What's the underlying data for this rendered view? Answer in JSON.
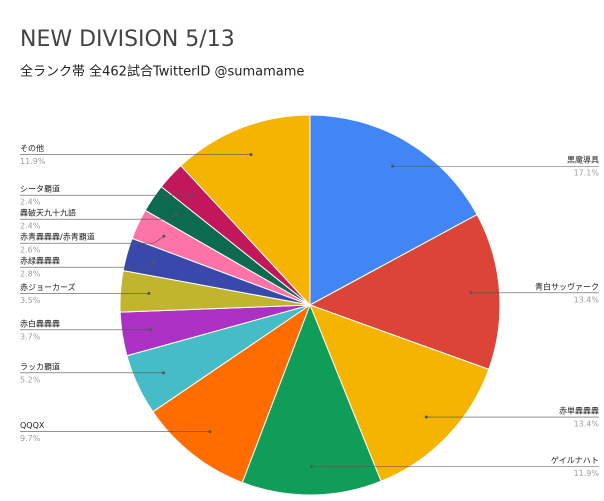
{
  "chart_data": {
    "type": "pie",
    "title": "NEW DIVISION 5/13",
    "subtitle": "全ランク帯 全462試合TwitterID @sumamame",
    "categories": [
      "黒魔導具",
      "青白サッヴァーク",
      "赤単轟轟轟",
      "ゲイルナハト",
      "QQQX",
      "ラッカ覇道",
      "赤白轟轟轟",
      "赤ジョーカーズ",
      "赤緑轟轟轟",
      "赤青轟轟轟/赤青覇道",
      "轟破天九十九語",
      "シータ覇道",
      "その他"
    ],
    "values": [
      17.1,
      13.4,
      13.4,
      11.9,
      9.7,
      5.2,
      3.7,
      3.5,
      2.8,
      2.6,
      2.4,
      2.4,
      11.9
    ],
    "value_labels": [
      "17.1%",
      "13.4%",
      "13.4%",
      "11.9%",
      "9.7%",
      "5.2%",
      "3.7%",
      "3.5%",
      "2.8%",
      "2.6%",
      "2.4%",
      "2.4%",
      "11.9%"
    ],
    "colors": [
      "#4285f4",
      "#db4437",
      "#f4b400",
      "#0f9d58",
      "#ff6d00",
      "#46bdc6",
      "#ab30c4",
      "#c0b52d",
      "#3949ab",
      "#ff74a8",
      "#0b6a4f",
      "#c2185b",
      "#f4b400"
    ]
  }
}
